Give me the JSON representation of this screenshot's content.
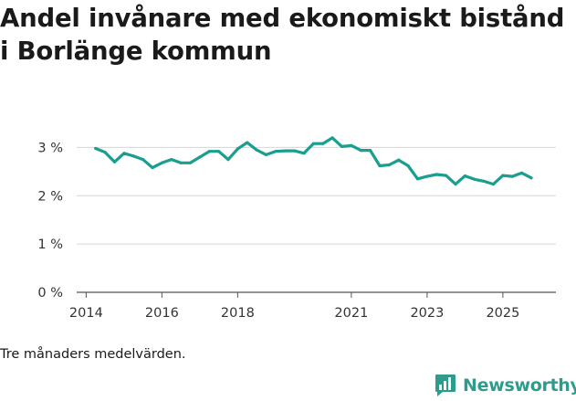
{
  "title": "Andel invånare med ekonomiskt bistånd i Borlänge kommun",
  "footnote": "Tre månaders medelvärden.",
  "brand": {
    "name": "Newsworthy",
    "icon": "bar-chart-icon",
    "color": "#2e9c8c"
  },
  "chart_data": {
    "type": "line",
    "title": "Andel invånare med ekonomiskt bistånd i Borlänge kommun",
    "xlabel": "",
    "ylabel": "",
    "x_ticks": [
      "2014",
      "2016",
      "2018",
      "2021",
      "2023",
      "2025"
    ],
    "y_ticks": [
      "0 %",
      "1 %",
      "2 %",
      "3 %"
    ],
    "ylim": [
      0,
      3.5
    ],
    "grid": true,
    "line_color": "#1a9e8f",
    "series": [
      {
        "x": [
          "2014-04",
          "2014-07",
          "2014-10",
          "2015-01",
          "2015-04",
          "2015-07",
          "2015-10",
          "2016-01",
          "2016-04",
          "2016-07",
          "2016-10",
          "2017-01",
          "2017-04",
          "2017-07",
          "2017-10",
          "2018-01",
          "2018-04",
          "2018-07",
          "2018-10",
          "2019-01",
          "2019-04",
          "2019-07",
          "2019-10",
          "2020-01",
          "2020-04",
          "2020-07",
          "2020-10",
          "2021-01",
          "2021-04",
          "2021-07",
          "2021-10",
          "2022-01",
          "2022-04",
          "2022-07",
          "2022-10",
          "2023-01",
          "2023-04",
          "2023-07",
          "2023-10",
          "2024-01",
          "2024-04",
          "2024-07",
          "2024-10",
          "2025-01",
          "2025-04",
          "2025-07",
          "2025-10"
        ],
        "values": [
          2.98,
          2.9,
          2.7,
          2.88,
          2.82,
          2.75,
          2.58,
          2.68,
          2.75,
          2.68,
          2.68,
          2.8,
          2.92,
          2.92,
          2.75,
          2.97,
          3.1,
          2.95,
          2.85,
          2.92,
          2.93,
          2.93,
          2.88,
          3.08,
          3.08,
          3.2,
          3.02,
          3.04,
          2.94,
          2.94,
          2.62,
          2.64,
          2.74,
          2.62,
          2.35,
          2.4,
          2.44,
          2.42,
          2.24,
          2.41,
          2.34,
          2.3,
          2.24,
          2.42,
          2.4,
          2.47,
          2.37
        ]
      }
    ]
  }
}
